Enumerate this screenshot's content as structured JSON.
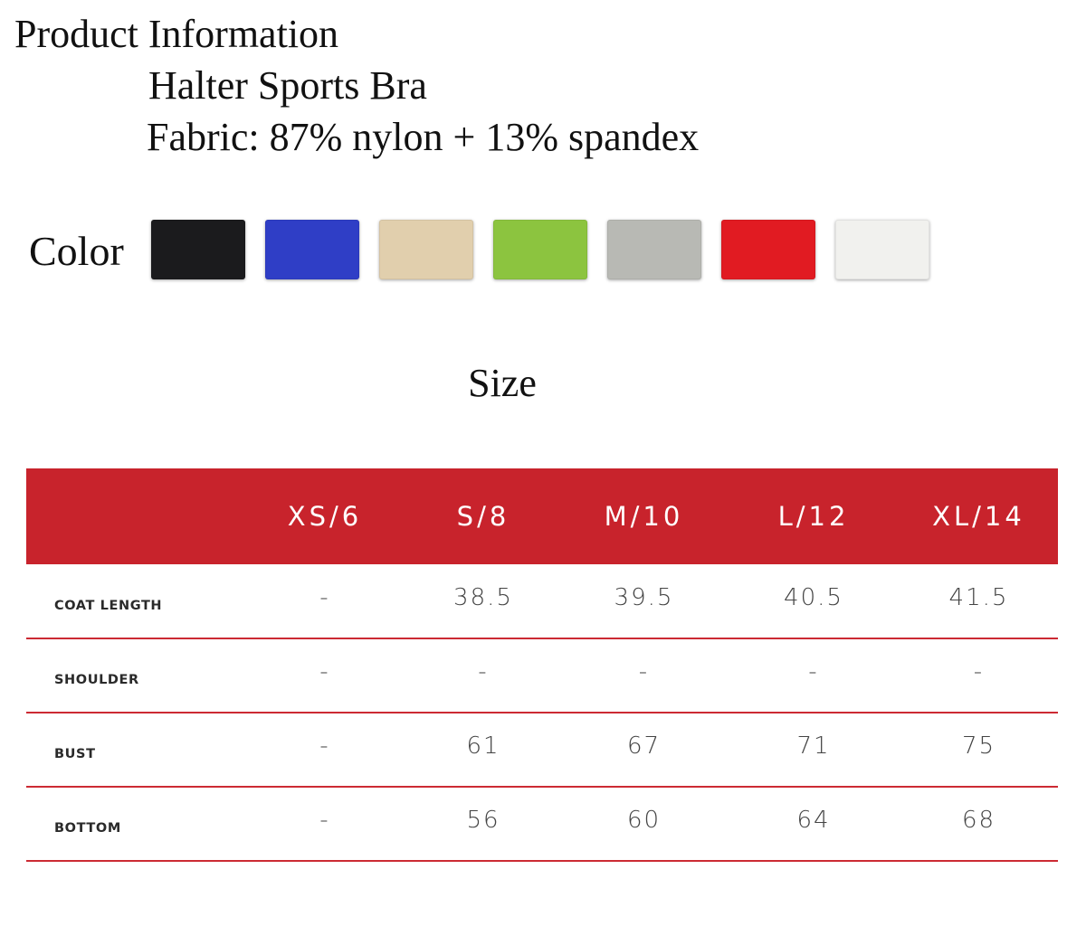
{
  "header": {
    "title": "Product Information",
    "product_name": "Halter Sports Bra",
    "fabric": "Fabric: 87% nylon + 13% spandex"
  },
  "colors": {
    "label": "Color",
    "swatches": [
      {
        "name": "black",
        "hex": "#1b1b1d"
      },
      {
        "name": "blue",
        "hex": "#2f3ec6"
      },
      {
        "name": "beige",
        "hex": "#e1cfad"
      },
      {
        "name": "green",
        "hex": "#8cc43f"
      },
      {
        "name": "gray",
        "hex": "#b8b9b4"
      },
      {
        "name": "red",
        "hex": "#e11b22"
      },
      {
        "name": "white",
        "hex": "#f1f1ee"
      }
    ]
  },
  "size_chart": {
    "heading": "Size",
    "header_color": "#c8232c",
    "columns": [
      "",
      "XS/6",
      "S/8",
      "M/10",
      "L/12",
      "XL/14"
    ],
    "rows": [
      {
        "label": "COAT LENGTH",
        "values": [
          "-",
          "38.5",
          "39.5",
          "40.5",
          "41.5"
        ]
      },
      {
        "label": "SHOULDER",
        "values": [
          "-",
          "-",
          "-",
          "-",
          "-"
        ]
      },
      {
        "label": "BUST",
        "values": [
          "-",
          "61",
          "67",
          "71",
          "75"
        ]
      },
      {
        "label": "BOTTOM",
        "values": [
          "-",
          "56",
          "60",
          "64",
          "68"
        ]
      }
    ]
  }
}
